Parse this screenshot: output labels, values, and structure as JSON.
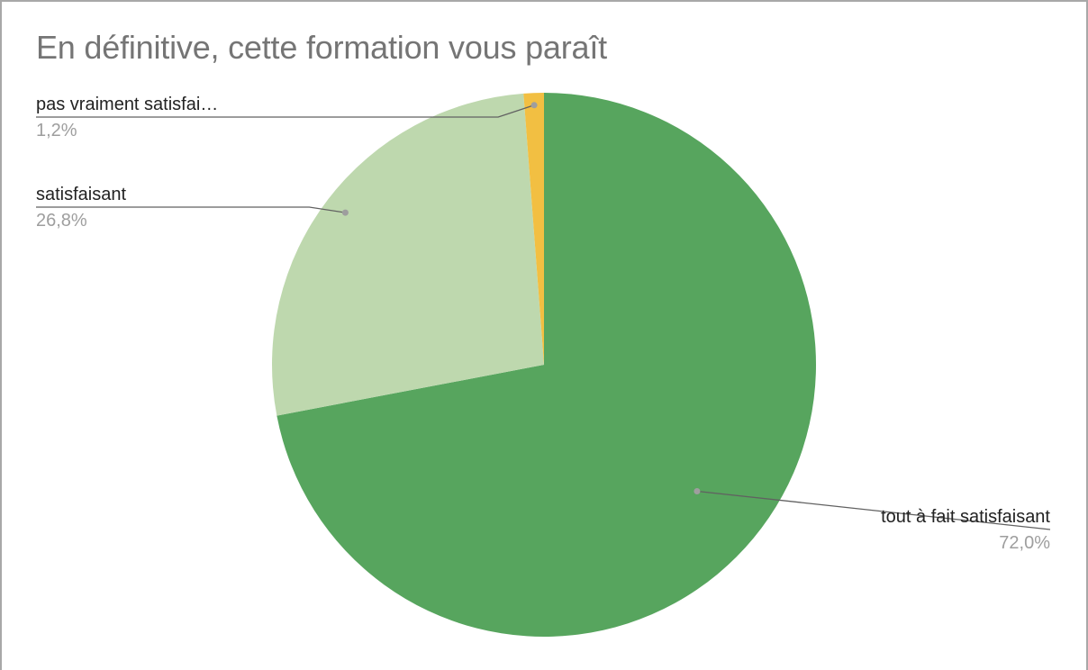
{
  "chart_data": {
    "type": "pie",
    "title": "En définitive, cette formation vous paraît",
    "slices": [
      {
        "label": "tout à fait satisfaisant",
        "value": 72.0,
        "pct_label": "72,0%",
        "color": "#57a55e"
      },
      {
        "label": "satisfaisant",
        "value": 26.8,
        "pct_label": "26,8%",
        "color": "#bed8ae"
      },
      {
        "label": "pas vraiment satisfai…",
        "value": 1.2,
        "pct_label": "1,2%",
        "color": "#f2bf42"
      }
    ],
    "legend": "none",
    "start_angle_deg": 0,
    "direction": "clockwise"
  }
}
